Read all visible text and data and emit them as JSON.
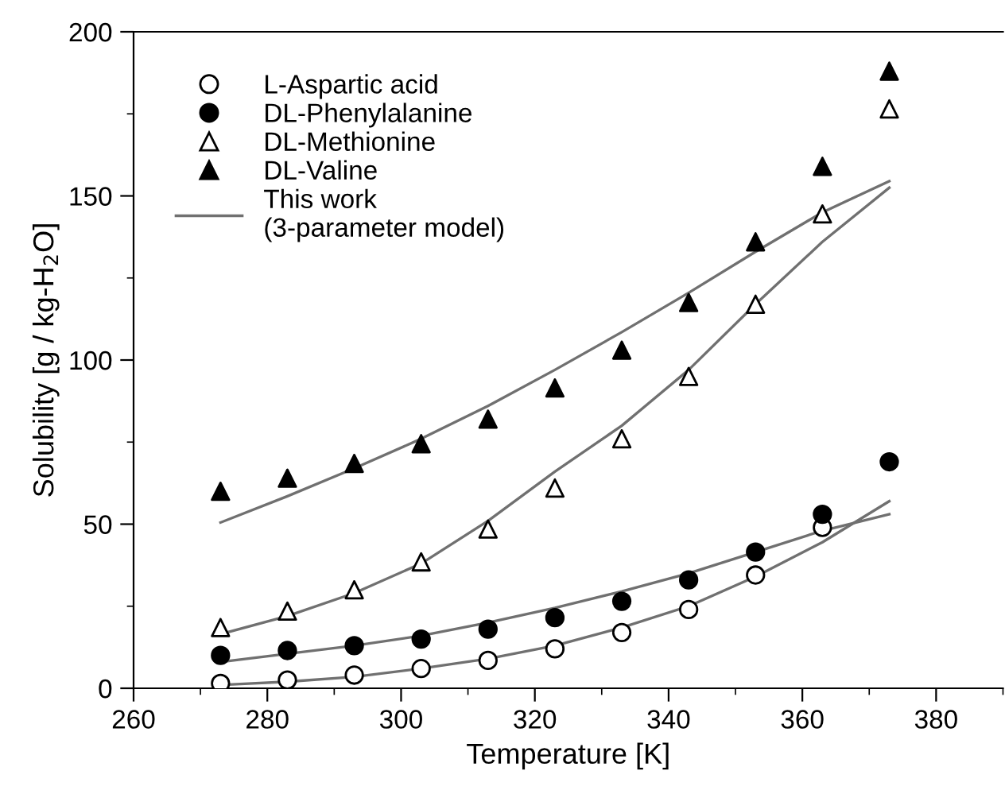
{
  "chart_data": {
    "type": "scatter",
    "xlabel": "Temperature [K]",
    "ylabel": "Solubility [g / kg-H$_{2}$O]",
    "xlim": [
      260,
      390
    ],
    "ylim": [
      0,
      200
    ],
    "xticks": [
      260,
      280,
      300,
      320,
      340,
      360,
      380
    ],
    "yticks": [
      0,
      50,
      100,
      150,
      200
    ],
    "grid": false,
    "legend": "top left",
    "series": [
      {
        "name": "L-Aspartic acid",
        "marker": "circle-open",
        "color": "#000000",
        "x": [
          273,
          283,
          293,
          303,
          313,
          323,
          333,
          343,
          353,
          363
        ],
        "values": [
          1.5,
          2.5,
          4,
          6,
          8.5,
          12,
          17,
          24,
          34.5,
          49
        ]
      },
      {
        "name": "DL-Phenylalanine",
        "marker": "circle",
        "color": "#000000",
        "x": [
          273,
          283,
          293,
          303,
          313,
          323,
          333,
          343,
          353,
          363,
          373
        ],
        "values": [
          10,
          11.5,
          13,
          15,
          18,
          21.5,
          26.5,
          33,
          41.5,
          53,
          69
        ]
      },
      {
        "name": "DL-Methionine",
        "marker": "triangle-open",
        "color": "#000000",
        "x": [
          273,
          283,
          293,
          303,
          313,
          323,
          333,
          343,
          353,
          363,
          373
        ],
        "values": [
          18.5,
          23.5,
          30,
          38.5,
          48.5,
          61,
          76,
          95,
          117,
          144.5,
          176.5
        ]
      },
      {
        "name": "DL-Valine",
        "marker": "triangle",
        "color": "#000000",
        "x": [
          273,
          283,
          293,
          303,
          313,
          323,
          333,
          343,
          353,
          363,
          373
        ],
        "values": [
          60,
          64,
          68.5,
          74.5,
          82,
          91.5,
          103,
          117.5,
          136,
          159,
          188
        ]
      },
      {
        "name": "This work\n(3-parameter model)",
        "type": "line",
        "marker": "none",
        "color": "#707070",
        "x": [
          273,
          283,
          293,
          303,
          313,
          323,
          333,
          343,
          353,
          363,
          373
        ],
        "values": [
          1,
          2,
          3.5,
          6,
          9,
          13,
          18.5,
          25,
          34,
          44.5,
          57
        ]
      },
      {
        "type": "line",
        "marker": "none",
        "color": "#707070",
        "x": [
          273,
          283,
          293,
          303,
          313,
          323,
          333,
          343,
          353,
          363,
          373
        ],
        "values": [
          8,
          10.5,
          13,
          16,
          20,
          24.5,
          29.5,
          35,
          41.5,
          48,
          53
        ]
      },
      {
        "type": "line",
        "marker": "none",
        "color": "#707070",
        "x": [
          273,
          283,
          293,
          303,
          313,
          323,
          333,
          343,
          353,
          363,
          373
        ],
        "values": [
          16.5,
          22,
          29,
          38,
          51,
          66,
          80,
          97,
          117,
          136,
          152.5
        ]
      },
      {
        "type": "line",
        "marker": "none",
        "color": "#707070",
        "x": [
          273,
          283,
          293,
          303,
          313,
          323,
          333,
          343,
          353,
          363,
          373
        ],
        "values": [
          50.5,
          58.5,
          67,
          76,
          86,
          97,
          108.5,
          120.5,
          133,
          145,
          154.5
        ]
      }
    ]
  }
}
